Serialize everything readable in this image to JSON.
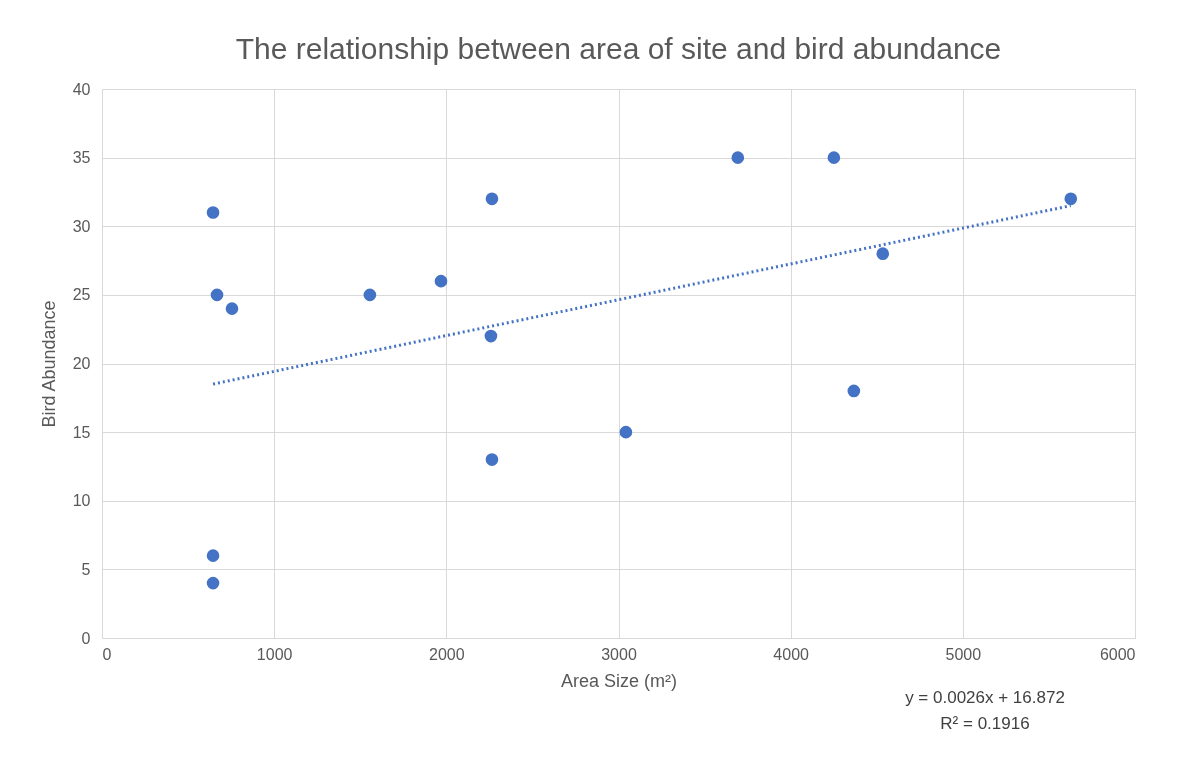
{
  "chart_data": {
    "type": "scatter",
    "title": "The relationship between area of site and bird abundance",
    "xlabel": "Area Size (m²)",
    "ylabel": "Bird Abundance",
    "series": [
      {
        "color": "#4472c4",
        "marker": "circle",
        "x": [
          645,
          645,
          645,
          668,
          755,
          1556,
          1969,
          2265,
          2259,
          2265,
          3043,
          3693,
          4251,
          4367,
          4535,
          5627
        ],
        "values": [
          4,
          6,
          31,
          25,
          24,
          25,
          26,
          32,
          22,
          13,
          15,
          35,
          35,
          18,
          28,
          32
        ]
      },
      {
        "type": "line",
        "color": "#4472c4",
        "line_style": "dotted",
        "marker": "none",
        "x": [
          645,
          5627
        ],
        "values": [
          18.5,
          31.5
        ]
      }
    ],
    "xlim": [
      0,
      6000
    ],
    "xticks": [
      0,
      1000,
      2000,
      3000,
      4000,
      5000,
      6000
    ],
    "ylim": [
      0,
      40
    ],
    "yticks": [
      0,
      5,
      10,
      15,
      20,
      25,
      30,
      35,
      40
    ],
    "grid": true,
    "annotations": [
      "y = 0.0026x + 16.872",
      "R² = 0.1916"
    ]
  }
}
